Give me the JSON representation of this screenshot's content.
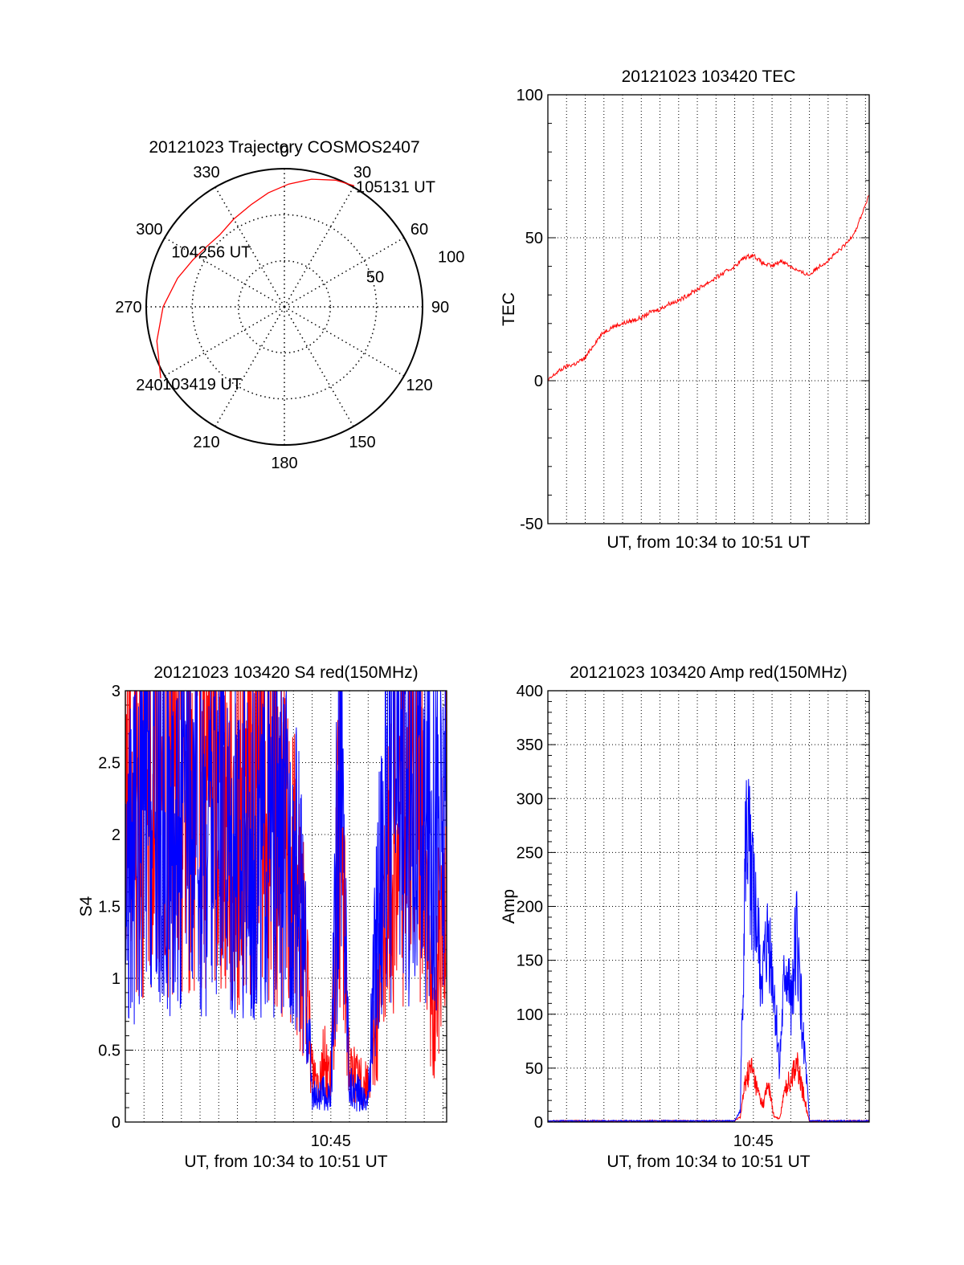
{
  "colors": {
    "red": "#ff0000",
    "blue": "#0000ff",
    "axis": "#000000",
    "grid": "#000000"
  },
  "chart_data": [
    {
      "id": "polar",
      "type": "polar-trajectory",
      "title": "20121023 Trajectory COSMOS2407",
      "azimuth_labels": [
        "0",
        "30",
        "60",
        "90",
        "120",
        "150",
        "180",
        "210",
        "240",
        "270",
        "300",
        "330"
      ],
      "azimuth_values": [
        0,
        30,
        60,
        90,
        120,
        150,
        180,
        210,
        240,
        270,
        300,
        330
      ],
      "radius_labels": [
        "50",
        "100"
      ],
      "radius_values": [
        50,
        100
      ],
      "track": {
        "color": "red",
        "points": [
          {
            "az": 240,
            "zen": 93
          },
          {
            "az": 255,
            "zen": 86
          },
          {
            "az": 270,
            "zen": 79
          },
          {
            "az": 285,
            "zen": 72
          },
          {
            "az": 297,
            "zen": 67
          },
          {
            "az": 308,
            "zen": 64
          },
          {
            "az": 318,
            "zen": 63
          },
          {
            "az": 330,
            "zen": 66
          },
          {
            "az": 342,
            "zen": 70
          },
          {
            "az": 352,
            "zen": 75
          },
          {
            "az": 2,
            "zen": 80
          },
          {
            "az": 12,
            "zen": 85
          },
          {
            "az": 22,
            "zen": 89
          },
          {
            "az": 30,
            "zen": 91
          }
        ]
      },
      "annotations": [
        {
          "text": "103419 UT",
          "az": 240,
          "zen": 93
        },
        {
          "text": "104256 UT",
          "az": 318,
          "zen": 63
        },
        {
          "text": "105131 UT",
          "az": 30,
          "zen": 91
        }
      ]
    },
    {
      "id": "tec",
      "type": "line",
      "title": "20121023 103420 TEC",
      "xlabel": "UT, from 10:34 to 10:51 UT",
      "ylabel": "TEC",
      "ylim": [
        -50,
        100
      ],
      "yticks": [
        -50,
        0,
        50,
        100
      ],
      "xlim_minutes": [
        0,
        17.2
      ],
      "xtick_labels": [],
      "grid": true,
      "series": [
        {
          "color": "red",
          "x": [
            0,
            0.5,
            1,
            1.5,
            2,
            2.6,
            3,
            3.5,
            4,
            4.5,
            5,
            5.5,
            6,
            6.5,
            7,
            7.5,
            8,
            8.5,
            9,
            9.5,
            10,
            10.5,
            11,
            11.5,
            12,
            12.5,
            13,
            13.5,
            14,
            14.5,
            15,
            15.5,
            16,
            16.5,
            17.2
          ],
          "y": [
            0,
            3,
            5,
            6,
            8,
            14,
            17,
            19,
            20,
            21,
            22,
            24,
            25,
            27,
            28,
            30,
            32,
            34,
            36,
            38,
            40,
            43,
            44,
            41,
            40,
            42,
            40,
            38,
            37,
            40,
            42,
            45,
            48,
            53,
            65
          ]
        }
      ]
    },
    {
      "id": "s4",
      "type": "line",
      "title": "20121023 103420 S4 red(150MHz)",
      "xlabel": "UT, from 10:34 to 10:51 UT",
      "ylabel": "S4",
      "ylim": [
        0,
        3
      ],
      "yticks": [
        0,
        0.5,
        1,
        1.5,
        2,
        2.5,
        3
      ],
      "xlim_minutes": [
        0,
        17.2
      ],
      "xtick_labels": [
        {
          "label": "10:45",
          "minute": 11
        }
      ],
      "grid": true,
      "series": [
        {
          "color": "red",
          "x": [
            0,
            1,
            2,
            3,
            4,
            5,
            6,
            7,
            8,
            9,
            9.5,
            10,
            10.3,
            10.6,
            11,
            11.5,
            12,
            12.5,
            13,
            13.5,
            14,
            14.5,
            15,
            15.5,
            16,
            16.5,
            17.2
          ],
          "y": [
            2.6,
            2.3,
            2.4,
            2.2,
            2.5,
            2.3,
            2.1,
            2.3,
            2.2,
            1.7,
            1.3,
            0.35,
            0.3,
            0.45,
            0.3,
            2.2,
            0.35,
            0.3,
            0.25,
            0.8,
            1.6,
            2.0,
            2.3,
            2.2,
            1.9,
            0.6,
            2.2
          ]
        },
        {
          "color": "blue",
          "x": [
            0,
            1,
            2,
            3,
            4,
            5,
            6,
            7,
            8,
            9,
            9.5,
            10,
            10.3,
            10.6,
            11,
            11.5,
            12,
            12.5,
            13,
            13.5,
            14,
            14.5,
            15,
            15.5,
            16,
            16.5,
            17.2
          ],
          "y": [
            1.6,
            2.2,
            2.0,
            2.1,
            2.0,
            2.2,
            1.9,
            2.0,
            1.9,
            1.8,
            1.4,
            0.2,
            0.15,
            0.2,
            0.15,
            2.8,
            0.25,
            0.2,
            0.15,
            1.5,
            2.3,
            2.4,
            2.2,
            2.3,
            2.0,
            2.2,
            1.9
          ]
        }
      ]
    },
    {
      "id": "amp",
      "type": "line",
      "title": "20121023 103420 Amp red(150MHz)",
      "xlabel": "UT, from 10:34 to 10:51 UT",
      "ylabel": "Amp",
      "ylim": [
        0,
        400
      ],
      "yticks": [
        0,
        50,
        100,
        150,
        200,
        250,
        300,
        350,
        400
      ],
      "xlim_minutes": [
        0,
        17.2
      ],
      "xtick_labels": [
        {
          "label": "10:45",
          "minute": 11
        }
      ],
      "grid": true,
      "series": [
        {
          "color": "red",
          "x": [
            0,
            10,
            10.3,
            10.6,
            10.9,
            11.2,
            11.5,
            11.8,
            12.1,
            12.4,
            12.7,
            13.0,
            13.3,
            14,
            17.2
          ],
          "y": [
            1,
            1,
            5,
            40,
            50,
            30,
            15,
            35,
            5,
            3,
            30,
            40,
            55,
            1,
            1
          ]
        },
        {
          "color": "blue",
          "x": [
            0,
            10,
            10.3,
            10.6,
            10.9,
            11.2,
            11.5,
            11.8,
            12.1,
            12.4,
            12.7,
            13.0,
            13.3,
            14,
            17.2
          ],
          "y": [
            1,
            1,
            10,
            260,
            230,
            170,
            130,
            170,
            120,
            50,
            140,
            110,
            170,
            1,
            1
          ]
        }
      ]
    }
  ]
}
